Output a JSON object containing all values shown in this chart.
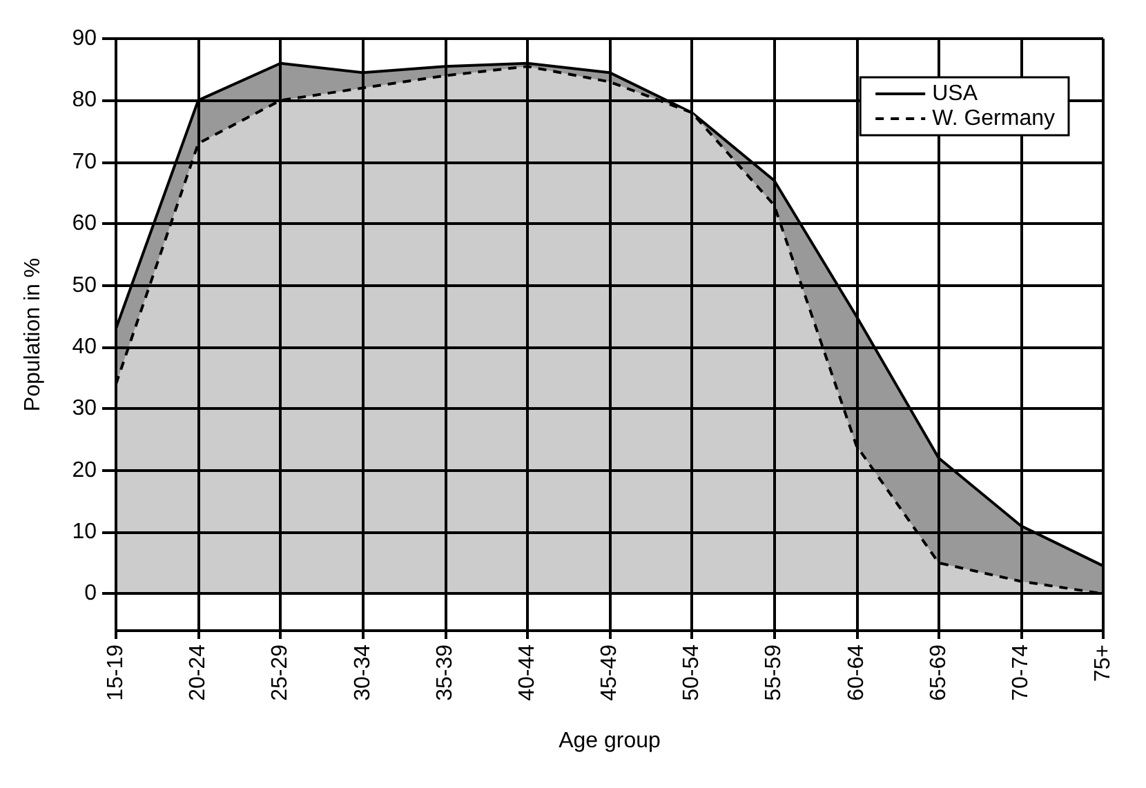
{
  "chart_data": {
    "type": "area",
    "xlabel": "Age group",
    "ylabel": "Population in %",
    "categories": [
      "15-19",
      "20-24",
      "25-29",
      "30-34",
      "35-39",
      "40-44",
      "45-49",
      "50-54",
      "55-59",
      "60-64",
      "65-69",
      "70-74",
      "75+"
    ],
    "series": [
      {
        "name": "USA",
        "color": "#999999",
        "line_style": "solid",
        "values": [
          43,
          80,
          86,
          84.5,
          85.5,
          86,
          84.5,
          78,
          67,
          45,
          22,
          11,
          4.5
        ]
      },
      {
        "name": "W. Germany",
        "color": "#cccccc",
        "line_style": "dashed",
        "values": [
          34,
          73,
          80,
          82,
          84,
          85.5,
          83,
          78,
          63,
          24,
          5,
          2,
          0
        ]
      }
    ],
    "ylim": [
      -6,
      90
    ],
    "yticks": [
      0,
      10,
      20,
      30,
      40,
      50,
      60,
      70,
      80,
      90
    ],
    "grid": true,
    "legend": "top right",
    "marker": "none"
  }
}
